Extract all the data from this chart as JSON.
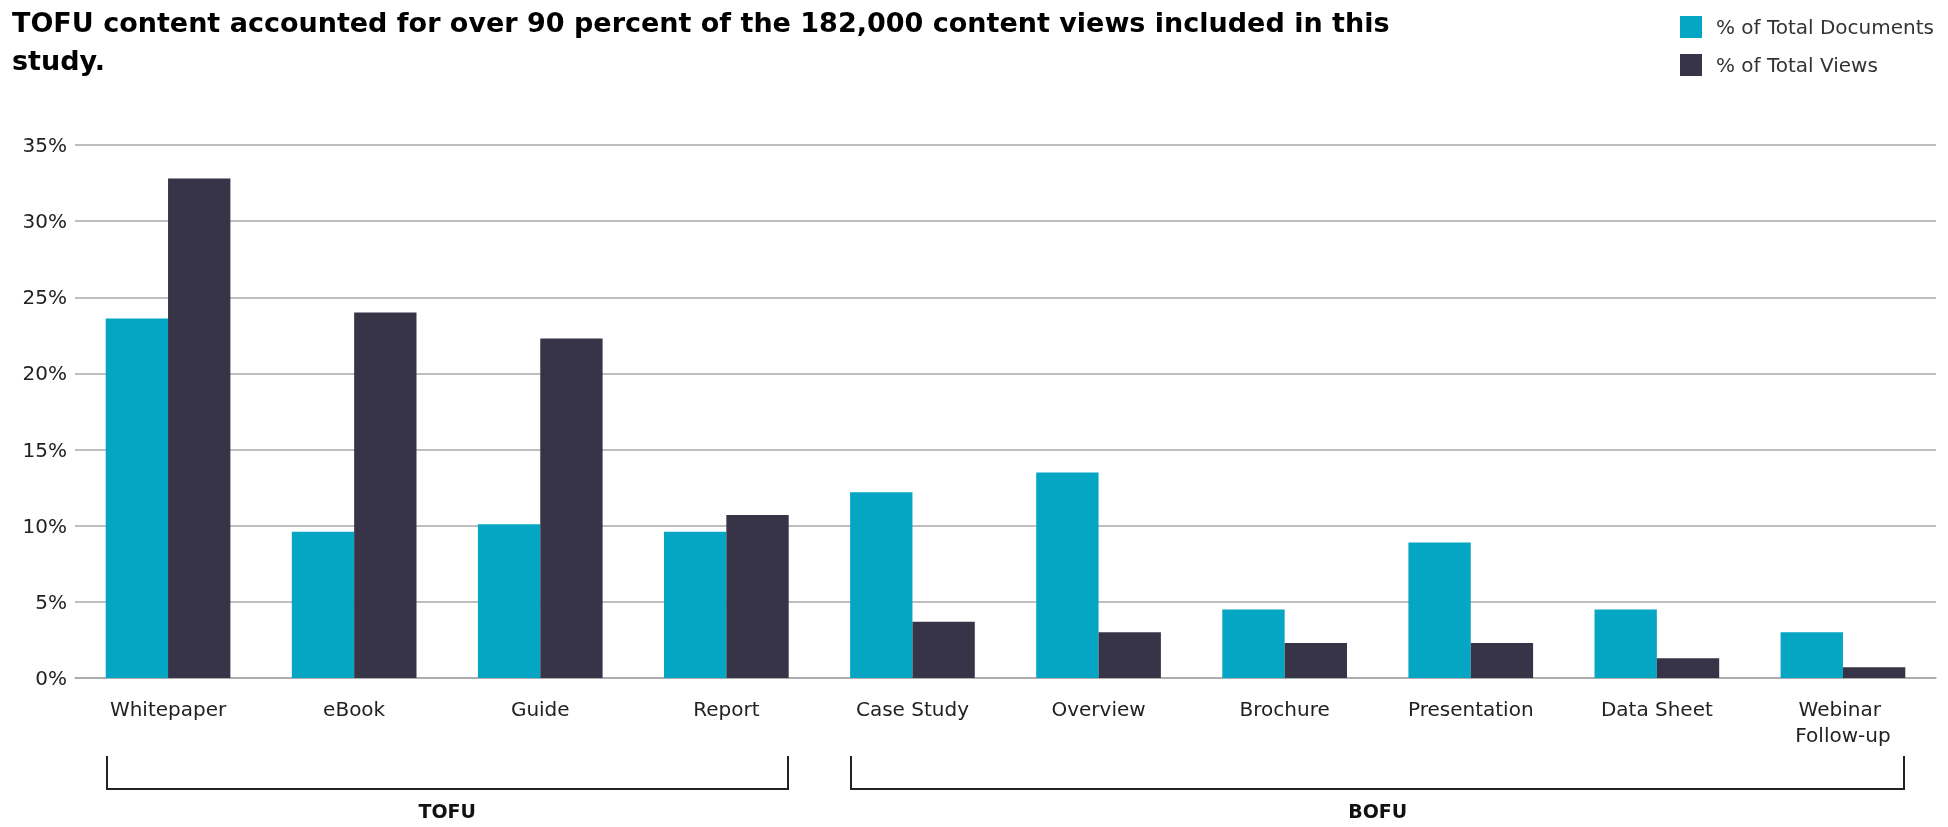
{
  "chart_data": {
    "type": "bar",
    "title": "TOFU content accounted for over 90 percent of the 182,000 content views included in this study.",
    "categories": [
      "Whitepaper",
      "eBook",
      "Guide",
      "Report",
      "Case Study",
      "Overview",
      "Brochure",
      "Presentation",
      "Data Sheet",
      "Webinar Follow-up"
    ],
    "series": [
      {
        "name": "% of Total Documents",
        "color": "#04a6c4",
        "values": [
          23.6,
          9.6,
          10.1,
          9.6,
          12.2,
          13.5,
          4.5,
          8.9,
          4.5,
          3.0
        ]
      },
      {
        "name": "% of Total Views",
        "color": "#363446",
        "values": [
          32.8,
          24.0,
          22.3,
          10.7,
          3.7,
          3.0,
          2.3,
          2.3,
          1.3,
          0.7
        ]
      }
    ],
    "ylim": [
      0,
      35
    ],
    "yticks": [
      {
        "value": 0,
        "label": "0%"
      },
      {
        "value": 5,
        "label": "5%"
      },
      {
        "value": 10,
        "label": "10%"
      },
      {
        "value": 15,
        "label": "15%"
      },
      {
        "value": 20,
        "label": "20%"
      },
      {
        "value": 25,
        "label": "25%"
      },
      {
        "value": 30,
        "label": "30%"
      },
      {
        "value": 35,
        "label": "35%"
      }
    ],
    "grid": "y",
    "legend": "top right",
    "annotations": [
      "TOFU",
      "BOFU"
    ]
  }
}
